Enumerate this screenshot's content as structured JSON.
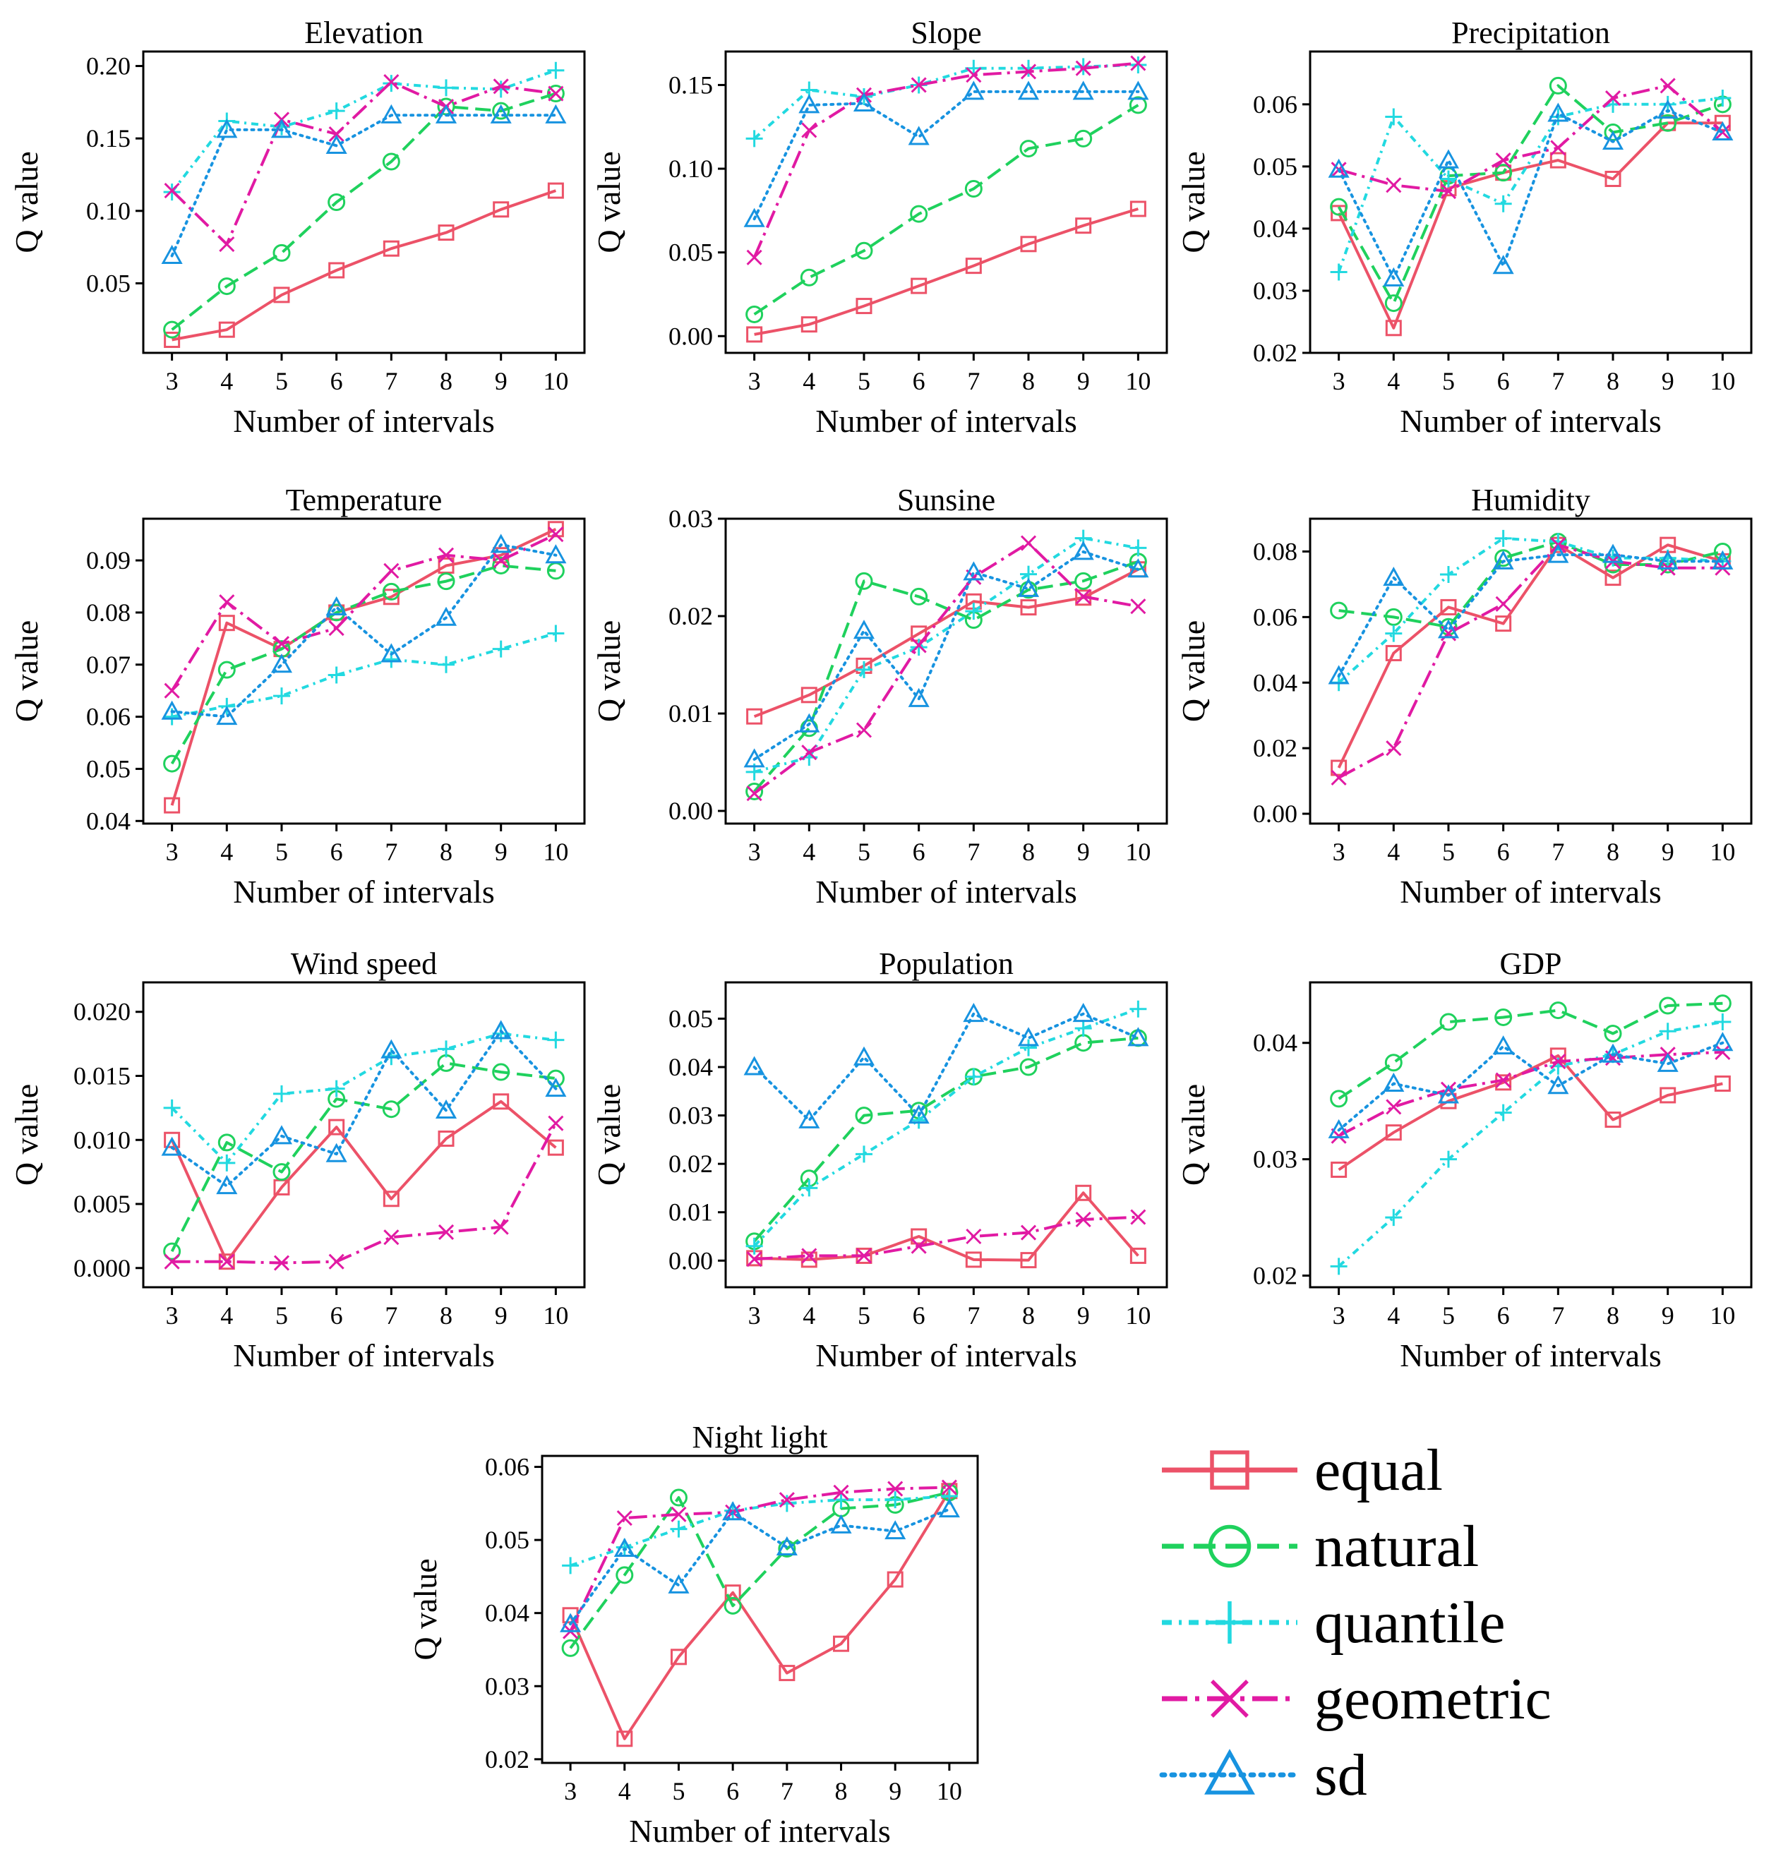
{
  "figure": {
    "ylabel": "Q value",
    "xlabel": "Number of intervals"
  },
  "legend": {
    "entries": [
      {
        "key": "equal",
        "label": "equal",
        "color": "#ec5268",
        "marker": "square",
        "dash": "solid"
      },
      {
        "key": "natural",
        "label": "natural",
        "color": "#1fd15d",
        "marker": "circle",
        "dash": "dashed"
      },
      {
        "key": "quantile",
        "label": "quantile",
        "color": "#22d9e0",
        "marker": "plus",
        "dash": "dashdot"
      },
      {
        "key": "geometric",
        "label": "geometric",
        "color": "#e11aa3",
        "marker": "x",
        "dash": "longdashdot"
      },
      {
        "key": "sd",
        "label": "sd",
        "color": "#1793e0",
        "marker": "triangle",
        "dash": "dotted"
      }
    ]
  },
  "chart_data": [
    {
      "type": "line",
      "title": "Elevation",
      "xlabel": "Number of intervals",
      "ylabel": "Q value",
      "x": [
        3,
        4,
        5,
        6,
        7,
        8,
        9,
        10
      ],
      "ylim": [
        0.002,
        0.21
      ],
      "yticks": [
        0.05,
        0.1,
        0.15,
        0.2
      ],
      "ytick_labels": [
        "0.05",
        "0.10",
        "0.15",
        "0.20"
      ],
      "series": [
        {
          "name": "equal",
          "values": [
            0.011,
            0.018,
            0.042,
            0.059,
            0.074,
            0.085,
            0.101,
            0.114
          ]
        },
        {
          "name": "natural",
          "values": [
            0.018,
            0.048,
            0.071,
            0.106,
            0.134,
            0.172,
            0.169,
            0.181
          ]
        },
        {
          "name": "quantile",
          "values": [
            0.113,
            0.162,
            0.158,
            0.169,
            0.188,
            0.185,
            0.184,
            0.197
          ]
        },
        {
          "name": "geometric",
          "values": [
            0.114,
            0.077,
            0.163,
            0.153,
            0.189,
            0.172,
            0.186,
            0.181
          ]
        },
        {
          "name": "sd",
          "values": [
            0.069,
            0.156,
            0.156,
            0.145,
            0.166,
            0.166,
            0.166,
            0.166
          ]
        }
      ]
    },
    {
      "type": "line",
      "title": "Slope",
      "xlabel": "Number of intervals",
      "ylabel": "Q value",
      "x": [
        3,
        4,
        5,
        6,
        7,
        8,
        9,
        10
      ],
      "ylim": [
        -0.01,
        0.17
      ],
      "yticks": [
        0.0,
        0.05,
        0.1,
        0.15
      ],
      "ytick_labels": [
        "0.00",
        "0.05",
        "0.10",
        "0.15"
      ],
      "series": [
        {
          "name": "equal",
          "values": [
            0.001,
            0.007,
            0.018,
            0.03,
            0.042,
            0.055,
            0.066,
            0.076
          ]
        },
        {
          "name": "natural",
          "values": [
            0.013,
            0.035,
            0.051,
            0.073,
            0.088,
            0.112,
            0.118,
            0.138
          ]
        },
        {
          "name": "quantile",
          "values": [
            0.118,
            0.147,
            0.143,
            0.15,
            0.16,
            0.16,
            0.161,
            0.162
          ]
        },
        {
          "name": "geometric",
          "values": [
            0.047,
            0.123,
            0.144,
            0.15,
            0.156,
            0.158,
            0.16,
            0.163
          ]
        },
        {
          "name": "sd",
          "values": [
            0.07,
            0.138,
            0.139,
            0.119,
            0.146,
            0.146,
            0.146,
            0.146
          ]
        }
      ]
    },
    {
      "type": "line",
      "title": "Precipitation",
      "xlabel": "Number of intervals",
      "ylabel": "Q value",
      "x": [
        3,
        4,
        5,
        6,
        7,
        8,
        9,
        10
      ],
      "ylim": [
        0.02,
        0.0685
      ],
      "yticks": [
        0.02,
        0.03,
        0.04,
        0.05,
        0.06
      ],
      "ytick_labels": [
        "0.02",
        "0.03",
        "0.04",
        "0.05",
        "0.06"
      ],
      "series": [
        {
          "name": "equal",
          "values": [
            0.0425,
            0.024,
            0.0465,
            0.049,
            0.051,
            0.048,
            0.057,
            0.057
          ]
        },
        {
          "name": "natural",
          "values": [
            0.0435,
            0.028,
            0.0485,
            0.049,
            0.063,
            0.0555,
            0.057,
            0.06
          ]
        },
        {
          "name": "quantile",
          "values": [
            0.033,
            0.058,
            0.048,
            0.044,
            0.058,
            0.06,
            0.06,
            0.061
          ]
        },
        {
          "name": "geometric",
          "values": [
            0.0495,
            0.047,
            0.046,
            0.051,
            0.053,
            0.061,
            0.063,
            0.0555
          ]
        },
        {
          "name": "sd",
          "values": [
            0.0495,
            0.032,
            0.051,
            0.034,
            0.0585,
            0.054,
            0.059,
            0.0555
          ]
        }
      ]
    },
    {
      "type": "line",
      "title": "Temperature",
      "xlabel": "Number of intervals",
      "ylabel": "Q value",
      "x": [
        3,
        4,
        5,
        6,
        7,
        8,
        9,
        10
      ],
      "ylim": [
        0.0395,
        0.098
      ],
      "yticks": [
        0.04,
        0.05,
        0.06,
        0.07,
        0.08,
        0.09
      ],
      "ytick_labels": [
        "0.04",
        "0.05",
        "0.06",
        "0.07",
        "0.08",
        "0.09"
      ],
      "series": [
        {
          "name": "equal",
          "values": [
            0.043,
            0.078,
            0.073,
            0.08,
            0.083,
            0.089,
            0.091,
            0.096
          ]
        },
        {
          "name": "natural",
          "values": [
            0.051,
            0.069,
            0.073,
            0.08,
            0.084,
            0.086,
            0.089,
            0.088
          ]
        },
        {
          "name": "quantile",
          "values": [
            0.06,
            0.062,
            0.064,
            0.068,
            0.071,
            0.07,
            0.073,
            0.076
          ]
        },
        {
          "name": "geometric",
          "values": [
            0.065,
            0.082,
            0.074,
            0.077,
            0.088,
            0.091,
            0.09,
            0.095
          ]
        },
        {
          "name": "sd",
          "values": [
            0.061,
            0.06,
            0.07,
            0.081,
            0.072,
            0.079,
            0.093,
            0.091
          ]
        }
      ]
    },
    {
      "type": "line",
      "title": "Sunsine",
      "xlabel": "Number of intervals",
      "ylabel": "Q value",
      "x": [
        3,
        4,
        5,
        6,
        7,
        8,
        9,
        10
      ],
      "ylim": [
        -0.0013,
        0.03
      ],
      "yticks": [
        0.0,
        0.01,
        0.02,
        0.03
      ],
      "ytick_labels": [
        "0.00",
        "0.01",
        "0.02",
        "0.03"
      ],
      "series": [
        {
          "name": "equal",
          "values": [
            0.0097,
            0.0119,
            0.0149,
            0.0182,
            0.0215,
            0.0209,
            0.0219,
            0.0248
          ]
        },
        {
          "name": "natural",
          "values": [
            0.002,
            0.0085,
            0.0236,
            0.022,
            0.0196,
            0.0227,
            0.0236,
            0.0256
          ]
        },
        {
          "name": "quantile",
          "values": [
            0.004,
            0.0055,
            0.0145,
            0.0168,
            0.0205,
            0.0243,
            0.028,
            0.027
          ]
        },
        {
          "name": "geometric",
          "values": [
            0.0018,
            0.006,
            0.0083,
            0.017,
            0.024,
            0.0275,
            0.022,
            0.021
          ]
        },
        {
          "name": "sd",
          "values": [
            0.0053,
            0.0089,
            0.0185,
            0.0115,
            0.0245,
            0.0228,
            0.0266,
            0.0248
          ]
        }
      ]
    },
    {
      "type": "line",
      "title": "Humidity",
      "xlabel": "Number of intervals",
      "ylabel": "Q value",
      "x": [
        3,
        4,
        5,
        6,
        7,
        8,
        9,
        10
      ],
      "ylim": [
        -0.003,
        0.09
      ],
      "yticks": [
        0.0,
        0.02,
        0.04,
        0.06,
        0.08
      ],
      "ytick_labels": [
        "0.00",
        "0.02",
        "0.04",
        "0.06",
        "0.08"
      ],
      "series": [
        {
          "name": "equal",
          "values": [
            0.014,
            0.049,
            0.063,
            0.058,
            0.082,
            0.072,
            0.082,
            0.077
          ]
        },
        {
          "name": "natural",
          "values": [
            0.062,
            0.06,
            0.057,
            0.078,
            0.083,
            0.076,
            0.076,
            0.08
          ]
        },
        {
          "name": "quantile",
          "values": [
            0.04,
            0.055,
            0.073,
            0.084,
            0.083,
            0.078,
            0.078,
            0.077
          ]
        },
        {
          "name": "geometric",
          "values": [
            0.011,
            0.02,
            0.055,
            0.064,
            0.082,
            0.077,
            0.075,
            0.075
          ]
        },
        {
          "name": "sd",
          "values": [
            0.042,
            0.072,
            0.056,
            0.077,
            0.079,
            0.079,
            0.077,
            0.077
          ]
        }
      ]
    },
    {
      "type": "line",
      "title": "Wind speed",
      "xlabel": "Number of intervals",
      "ylabel": "Q value",
      "x": [
        3,
        4,
        5,
        6,
        7,
        8,
        9,
        10
      ],
      "ylim": [
        -0.0015,
        0.0223
      ],
      "yticks": [
        0.0,
        0.005,
        0.01,
        0.015,
        0.02
      ],
      "ytick_labels": [
        "0.000",
        "0.005",
        "0.010",
        "0.015",
        "0.020"
      ],
      "series": [
        {
          "name": "equal",
          "values": [
            0.01,
            0.0005,
            0.0063,
            0.011,
            0.0054,
            0.0101,
            0.013,
            0.0094
          ]
        },
        {
          "name": "natural",
          "values": [
            0.0013,
            0.0098,
            0.0075,
            0.0132,
            0.0124,
            0.016,
            0.0153,
            0.0148
          ]
        },
        {
          "name": "quantile",
          "values": [
            0.0125,
            0.0082,
            0.0136,
            0.014,
            0.0165,
            0.0171,
            0.0183,
            0.0178
          ]
        },
        {
          "name": "geometric",
          "values": [
            0.0005,
            0.0005,
            0.0004,
            0.0005,
            0.0024,
            0.0028,
            0.0032,
            0.0113
          ]
        },
        {
          "name": "sd",
          "values": [
            0.0094,
            0.0064,
            0.0103,
            0.0089,
            0.017,
            0.0123,
            0.0185,
            0.014
          ]
        }
      ]
    },
    {
      "type": "line",
      "title": "Population",
      "xlabel": "Number of intervals",
      "ylabel": "Q value",
      "x": [
        3,
        4,
        5,
        6,
        7,
        8,
        9,
        10
      ],
      "ylim": [
        -0.0055,
        0.0575
      ],
      "yticks": [
        0.0,
        0.01,
        0.02,
        0.03,
        0.04,
        0.05
      ],
      "ytick_labels": [
        "0.00",
        "0.01",
        "0.02",
        "0.03",
        "0.04",
        "0.05"
      ],
      "series": [
        {
          "name": "equal",
          "values": [
            0.0005,
            0.0002,
            0.001,
            0.005,
            0.0002,
            0.0001,
            0.014,
            0.001
          ]
        },
        {
          "name": "natural",
          "values": [
            0.004,
            0.017,
            0.03,
            0.031,
            0.038,
            0.04,
            0.045,
            0.046
          ]
        },
        {
          "name": "quantile",
          "values": [
            0.003,
            0.015,
            0.022,
            0.029,
            0.038,
            0.044,
            0.048,
            0.052
          ]
        },
        {
          "name": "geometric",
          "values": [
            0.0003,
            0.001,
            0.001,
            0.003,
            0.005,
            0.0058,
            0.0085,
            0.009
          ]
        },
        {
          "name": "sd",
          "values": [
            0.04,
            0.029,
            0.042,
            0.03,
            0.051,
            0.046,
            0.051,
            0.046
          ]
        }
      ]
    },
    {
      "type": "line",
      "title": "GDP",
      "xlabel": "Number of intervals",
      "ylabel": "Q value",
      "x": [
        3,
        4,
        5,
        6,
        7,
        8,
        9,
        10
      ],
      "ylim": [
        0.019,
        0.0452
      ],
      "yticks": [
        0.02,
        0.03,
        0.04
      ],
      "ytick_labels": [
        "0.02",
        "0.03",
        "0.04"
      ],
      "series": [
        {
          "name": "equal",
          "values": [
            0.0291,
            0.0323,
            0.035,
            0.0366,
            0.0389,
            0.0334,
            0.0355,
            0.0365
          ]
        },
        {
          "name": "natural",
          "values": [
            0.0352,
            0.0383,
            0.0418,
            0.0422,
            0.0428,
            0.0408,
            0.0432,
            0.0434
          ]
        },
        {
          "name": "quantile",
          "values": [
            0.0208,
            0.025,
            0.03,
            0.034,
            0.038,
            0.039,
            0.041,
            0.0418
          ]
        },
        {
          "name": "geometric",
          "values": [
            0.032,
            0.0345,
            0.036,
            0.0368,
            0.0384,
            0.0387,
            0.039,
            0.0392
          ]
        },
        {
          "name": "sd",
          "values": [
            0.0325,
            0.0365,
            0.0355,
            0.0397,
            0.0363,
            0.039,
            0.0382,
            0.04
          ]
        }
      ]
    },
    {
      "type": "line",
      "title": "Night light",
      "xlabel": "Number of intervals",
      "ylabel": "Q value",
      "x": [
        3,
        4,
        5,
        6,
        7,
        8,
        9,
        10
      ],
      "ylim": [
        0.0195,
        0.0615
      ],
      "yticks": [
        0.02,
        0.03,
        0.04,
        0.05,
        0.06
      ],
      "ytick_labels": [
        "0.02",
        "0.03",
        "0.04",
        "0.05",
        "0.06"
      ],
      "series": [
        {
          "name": "equal",
          "values": [
            0.0397,
            0.0228,
            0.034,
            0.0428,
            0.0318,
            0.0358,
            0.0446,
            0.0567
          ]
        },
        {
          "name": "natural",
          "values": [
            0.0352,
            0.0452,
            0.0558,
            0.041,
            0.0488,
            0.0543,
            0.0548,
            0.0565
          ]
        },
        {
          "name": "quantile",
          "values": [
            0.0465,
            0.049,
            0.0515,
            0.054,
            0.055,
            0.0555,
            0.0555,
            0.056
          ]
        },
        {
          "name": "geometric",
          "values": [
            0.0375,
            0.053,
            0.0535,
            0.0538,
            0.0555,
            0.0565,
            0.057,
            0.0572
          ]
        },
        {
          "name": "sd",
          "values": [
            0.0385,
            0.0488,
            0.0438,
            0.0538,
            0.049,
            0.052,
            0.0512,
            0.0542
          ]
        }
      ]
    }
  ]
}
